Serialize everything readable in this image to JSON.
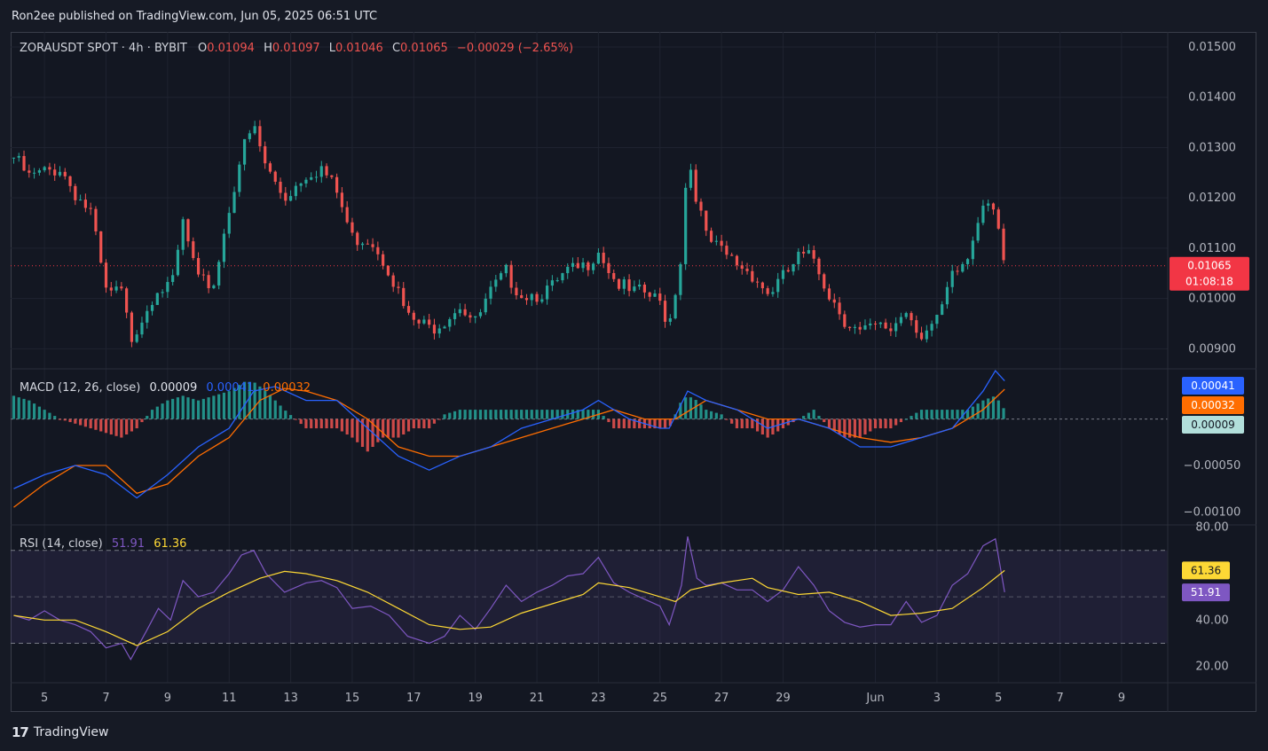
{
  "header": {
    "publisher": "Ron2ee published on TradingView.com, Jun 05, 2025 06:51 UTC"
  },
  "footer": {
    "brand": "TradingView"
  },
  "colors": {
    "up": "#26a69a",
    "down": "#ef5350",
    "macd": "#2962ff",
    "signal": "#ff6d00",
    "rsi": "#7e57c2",
    "rsi_ma": "#fdd835",
    "price_badge": "#f23645"
  },
  "chart_data": [
    {
      "type": "candlestick",
      "symbol_label": "ZORAUSDT SPOT · 4h · BYBIT",
      "ohlc_labels": {
        "o_key": "O",
        "o": "0.01094",
        "h_key": "H",
        "h": "0.01097",
        "l_key": "L",
        "l": "0.01046",
        "c_key": "C",
        "c": "0.01065",
        "change": "−0.00029 (−2.65%)"
      },
      "y_ticks": [
        "0.01500",
        "0.01400",
        "0.01300",
        "0.01200",
        "0.01100",
        "0.01000",
        "0.00900"
      ],
      "ylim": [
        0.0086,
        0.0153
      ],
      "last_price": "0.01065",
      "countdown": "01:08:18",
      "x_ticks": [
        "5",
        "7",
        "9",
        "11",
        "13",
        "15",
        "17",
        "19",
        "21",
        "23",
        "25",
        "27",
        "29",
        "Jun",
        "3",
        "5",
        "7",
        "9"
      ],
      "x_tick_values": [
        5,
        7,
        9,
        11,
        13,
        15,
        17,
        19,
        21,
        23,
        25,
        27,
        29,
        32,
        34,
        36,
        38,
        40
      ],
      "x_domain": [
        3.9,
        41.5
      ],
      "approx_close_path": [
        [
          4.0,
          0.0128
        ],
        [
          4.5,
          0.0124
        ],
        [
          5.0,
          0.0125
        ],
        [
          5.5,
          0.0126
        ],
        [
          6.0,
          0.0121
        ],
        [
          6.5,
          0.0117
        ],
        [
          7.0,
          0.0101
        ],
        [
          7.5,
          0.0101
        ],
        [
          7.8,
          0.0092
        ],
        [
          8.3,
          0.0098
        ],
        [
          8.7,
          0.0103
        ],
        [
          9.1,
          0.0101
        ],
        [
          9.5,
          0.0115
        ],
        [
          10.0,
          0.0103
        ],
        [
          10.5,
          0.0103
        ],
        [
          11.0,
          0.0118
        ],
        [
          11.4,
          0.0129
        ],
        [
          11.8,
          0.0134
        ],
        [
          12.2,
          0.0126
        ],
        [
          12.8,
          0.012
        ],
        [
          13.5,
          0.0125
        ],
        [
          14.0,
          0.0126
        ],
        [
          14.5,
          0.0121
        ],
        [
          15.0,
          0.0112
        ],
        [
          15.6,
          0.0112
        ],
        [
          16.2,
          0.0106
        ],
        [
          16.8,
          0.0096
        ],
        [
          17.5,
          0.0094
        ],
        [
          18.0,
          0.0096
        ],
        [
          18.5,
          0.0099
        ],
        [
          19.0,
          0.0095
        ],
        [
          19.5,
          0.0101
        ],
        [
          20.0,
          0.0105
        ],
        [
          20.5,
          0.0101
        ],
        [
          21.0,
          0.0101
        ],
        [
          21.5,
          0.0102
        ],
        [
          22.0,
          0.0105
        ],
        [
          22.5,
          0.0106
        ],
        [
          23.0,
          0.011
        ],
        [
          23.5,
          0.0104
        ],
        [
          24.0,
          0.0101
        ],
        [
          24.5,
          0.0101
        ],
        [
          25.0,
          0.0099
        ],
        [
          25.3,
          0.0095
        ],
        [
          25.7,
          0.0109
        ],
        [
          25.9,
          0.0129
        ],
        [
          26.2,
          0.012
        ],
        [
          26.5,
          0.0112
        ],
        [
          27.0,
          0.0109
        ],
        [
          27.5,
          0.0107
        ],
        [
          28.0,
          0.0105
        ],
        [
          28.5,
          0.0101
        ],
        [
          29.0,
          0.0104
        ],
        [
          29.5,
          0.0108
        ],
        [
          30.0,
          0.0108
        ],
        [
          30.5,
          0.0101
        ],
        [
          31.0,
          0.0096
        ],
        [
          31.5,
          0.0093
        ],
        [
          32.0,
          0.0094
        ],
        [
          32.5,
          0.0094
        ],
        [
          33.0,
          0.0098
        ],
        [
          33.5,
          0.0093
        ],
        [
          34.0,
          0.0095
        ],
        [
          34.5,
          0.0104
        ],
        [
          35.0,
          0.0108
        ],
        [
          35.5,
          0.012
        ],
        [
          35.9,
          0.0119
        ],
        [
          36.2,
          0.0106
        ]
      ]
    },
    {
      "type": "macd",
      "label": "MACD (12, 26, close)",
      "values": {
        "hist": "0.00009",
        "macd": "0.00041",
        "signal": "0.00032"
      },
      "y_ticks": [
        "−0.00050",
        "−0.00100"
      ],
      "ylim": [
        -0.00114,
        0.00054
      ],
      "macd_line": [
        [
          4.0,
          -0.00075
        ],
        [
          5.0,
          -0.0006
        ],
        [
          6.0,
          -0.0005
        ],
        [
          7.0,
          -0.0006
        ],
        [
          8.0,
          -0.00085
        ],
        [
          9.0,
          -0.0006
        ],
        [
          10.0,
          -0.0003
        ],
        [
          11.0,
          -0.0001
        ],
        [
          11.8,
          0.0003
        ],
        [
          12.5,
          0.00035
        ],
        [
          13.5,
          0.0002
        ],
        [
          14.5,
          0.0002
        ],
        [
          15.5,
          -0.0001
        ],
        [
          16.5,
          -0.0004
        ],
        [
          17.5,
          -0.00055
        ],
        [
          18.5,
          -0.0004
        ],
        [
          19.5,
          -0.0003
        ],
        [
          20.5,
          -0.0001
        ],
        [
          21.5,
          0.0
        ],
        [
          22.5,
          0.0001
        ],
        [
          23.0,
          0.0002
        ],
        [
          24.0,
          0.0
        ],
        [
          25.0,
          -0.0001
        ],
        [
          25.3,
          -0.0001
        ],
        [
          25.9,
          0.0003
        ],
        [
          26.5,
          0.0002
        ],
        [
          27.5,
          0.0001
        ],
        [
          28.5,
          -0.0001
        ],
        [
          29.5,
          0.0
        ],
        [
          30.5,
          -0.0001
        ],
        [
          31.5,
          -0.0003
        ],
        [
          32.5,
          -0.0003
        ],
        [
          33.5,
          -0.0002
        ],
        [
          34.5,
          -0.0001
        ],
        [
          35.5,
          0.0003
        ],
        [
          35.9,
          0.00052
        ],
        [
          36.2,
          0.00041
        ]
      ],
      "signal_line": [
        [
          4.0,
          -0.00095
        ],
        [
          5.0,
          -0.0007
        ],
        [
          6.0,
          -0.0005
        ],
        [
          7.0,
          -0.0005
        ],
        [
          8.0,
          -0.0008
        ],
        [
          9.0,
          -0.0007
        ],
        [
          10.0,
          -0.0004
        ],
        [
          11.0,
          -0.0002
        ],
        [
          12.0,
          0.0002
        ],
        [
          12.8,
          0.00033
        ],
        [
          13.5,
          0.0003
        ],
        [
          14.5,
          0.0002
        ],
        [
          15.5,
          0.0
        ],
        [
          16.5,
          -0.0003
        ],
        [
          17.5,
          -0.0004
        ],
        [
          18.5,
          -0.0004
        ],
        [
          19.5,
          -0.0003
        ],
        [
          20.5,
          -0.0002
        ],
        [
          21.5,
          -0.0001
        ],
        [
          22.5,
          0.0
        ],
        [
          23.5,
          0.0001
        ],
        [
          24.5,
          0.0
        ],
        [
          25.5,
          0.0
        ],
        [
          26.5,
          0.0002
        ],
        [
          27.5,
          0.0001
        ],
        [
          28.5,
          0.0
        ],
        [
          29.5,
          0.0
        ],
        [
          30.5,
          -0.0001
        ],
        [
          31.5,
          -0.0002
        ],
        [
          32.5,
          -0.00025
        ],
        [
          33.5,
          -0.0002
        ],
        [
          34.5,
          -0.0001
        ],
        [
          35.5,
          0.0001
        ],
        [
          36.2,
          0.00032
        ]
      ],
      "histogram": [
        [
          4.0,
          0.00025
        ],
        [
          4.5,
          0.0002
        ],
        [
          5.0,
          0.0001
        ],
        [
          5.5,
          0.0
        ],
        [
          6.0,
          -5e-05
        ],
        [
          6.5,
          -0.0001
        ],
        [
          7.0,
          -0.00015
        ],
        [
          7.5,
          -0.0002
        ],
        [
          8.0,
          -0.0001
        ],
        [
          8.5,
          0.0001
        ],
        [
          9.0,
          0.0002
        ],
        [
          9.5,
          0.00025
        ],
        [
          10.0,
          0.0002
        ],
        [
          10.5,
          0.00025
        ],
        [
          11.0,
          0.0003
        ],
        [
          11.5,
          0.0004
        ],
        [
          11.8,
          0.0004
        ],
        [
          12.2,
          0.0003
        ],
        [
          12.8,
          0.0001
        ],
        [
          13.5,
          -0.0001
        ],
        [
          14.0,
          -0.0001
        ],
        [
          14.5,
          -0.0001
        ],
        [
          15.0,
          -0.0002
        ],
        [
          15.5,
          -0.00035
        ],
        [
          16.0,
          -0.0002
        ],
        [
          16.5,
          -0.0002
        ],
        [
          17.0,
          -0.0001
        ],
        [
          17.5,
          -0.0001
        ],
        [
          18.0,
          5e-05
        ],
        [
          18.5,
          0.0001
        ],
        [
          19.0,
          0.0001
        ],
        [
          19.5,
          0.0001
        ],
        [
          20.0,
          0.0001
        ],
        [
          20.5,
          0.0001
        ],
        [
          21.0,
          0.0001
        ],
        [
          21.5,
          0.0001
        ],
        [
          22.0,
          0.0001
        ],
        [
          22.5,
          0.0001
        ],
        [
          23.0,
          0.0001
        ],
        [
          23.5,
          -0.0001
        ],
        [
          24.0,
          -0.0001
        ],
        [
          24.5,
          -0.0001
        ],
        [
          25.0,
          -0.0001
        ],
        [
          25.3,
          -0.0001
        ],
        [
          25.7,
          0.0002
        ],
        [
          25.9,
          0.00025
        ],
        [
          26.2,
          0.0002
        ],
        [
          26.5,
          0.0001
        ],
        [
          27.0,
          5e-05
        ],
        [
          27.5,
          -0.0001
        ],
        [
          28.0,
          -0.0001
        ],
        [
          28.5,
          -0.0002
        ],
        [
          29.0,
          -0.0001
        ],
        [
          29.5,
          0.0
        ],
        [
          30.0,
          0.0001
        ],
        [
          30.5,
          -0.0001
        ],
        [
          31.0,
          -0.0002
        ],
        [
          31.5,
          -0.0002
        ],
        [
          32.0,
          -0.0001
        ],
        [
          32.5,
          -0.0001
        ],
        [
          33.0,
          0.0
        ],
        [
          33.5,
          0.0001
        ],
        [
          34.0,
          0.0001
        ],
        [
          34.5,
          0.0001
        ],
        [
          35.0,
          0.0001
        ],
        [
          35.5,
          0.0002
        ],
        [
          35.9,
          0.00025
        ],
        [
          36.2,
          0.0001
        ]
      ]
    },
    {
      "type": "line",
      "label": "RSI (14, close)",
      "values": {
        "rsi": "51.91",
        "rsi_ma": "61.36"
      },
      "y_ticks": [
        "80.00",
        "40.00",
        "20.00"
      ],
      "y_tick_values": [
        80,
        40,
        20
      ],
      "ylim": [
        13,
        81
      ],
      "band": [
        30,
        70
      ],
      "midline": 50,
      "rsi_line": [
        [
          4.0,
          42
        ],
        [
          4.5,
          40
        ],
        [
          5.0,
          44
        ],
        [
          5.5,
          40
        ],
        [
          6.0,
          38
        ],
        [
          6.5,
          35
        ],
        [
          7.0,
          28
        ],
        [
          7.5,
          30
        ],
        [
          7.8,
          23
        ],
        [
          8.3,
          35
        ],
        [
          8.7,
          45
        ],
        [
          9.1,
          40
        ],
        [
          9.5,
          57
        ],
        [
          10.0,
          50
        ],
        [
          10.5,
          52
        ],
        [
          11.0,
          60
        ],
        [
          11.4,
          68
        ],
        [
          11.8,
          70
        ],
        [
          12.2,
          60
        ],
        [
          12.8,
          52
        ],
        [
          13.5,
          56
        ],
        [
          14.0,
          57
        ],
        [
          14.5,
          54
        ],
        [
          15.0,
          45
        ],
        [
          15.6,
          46
        ],
        [
          16.2,
          42
        ],
        [
          16.8,
          33
        ],
        [
          17.5,
          30
        ],
        [
          18.0,
          33
        ],
        [
          18.5,
          42
        ],
        [
          19.0,
          36
        ],
        [
          19.5,
          45
        ],
        [
          20.0,
          55
        ],
        [
          20.5,
          48
        ],
        [
          21.0,
          52
        ],
        [
          21.5,
          55
        ],
        [
          22.0,
          59
        ],
        [
          22.5,
          60
        ],
        [
          23.0,
          67
        ],
        [
          23.5,
          56
        ],
        [
          24.0,
          52
        ],
        [
          24.5,
          49
        ],
        [
          25.0,
          46
        ],
        [
          25.3,
          38
        ],
        [
          25.7,
          55
        ],
        [
          25.9,
          76
        ],
        [
          26.2,
          58
        ],
        [
          26.5,
          55
        ],
        [
          27.0,
          56
        ],
        [
          27.5,
          53
        ],
        [
          28.0,
          53
        ],
        [
          28.5,
          48
        ],
        [
          29.0,
          53
        ],
        [
          29.5,
          63
        ],
        [
          30.0,
          55
        ],
        [
          30.5,
          44
        ],
        [
          31.0,
          39
        ],
        [
          31.5,
          37
        ],
        [
          32.0,
          38
        ],
        [
          32.5,
          38
        ],
        [
          33.0,
          48
        ],
        [
          33.5,
          39
        ],
        [
          34.0,
          42
        ],
        [
          34.5,
          55
        ],
        [
          35.0,
          60
        ],
        [
          35.5,
          72
        ],
        [
          35.9,
          75
        ],
        [
          36.2,
          52
        ]
      ],
      "rsi_ma_line": [
        [
          4.0,
          42
        ],
        [
          5.0,
          40
        ],
        [
          6.0,
          40
        ],
        [
          7.0,
          35
        ],
        [
          8.0,
          29
        ],
        [
          9.0,
          35
        ],
        [
          10.0,
          45
        ],
        [
          11.0,
          52
        ],
        [
          12.0,
          58
        ],
        [
          12.8,
          61
        ],
        [
          13.5,
          60
        ],
        [
          14.5,
          57
        ],
        [
          15.5,
          52
        ],
        [
          16.5,
          45
        ],
        [
          17.5,
          38
        ],
        [
          18.5,
          36
        ],
        [
          19.5,
          37
        ],
        [
          20.5,
          43
        ],
        [
          21.5,
          47
        ],
        [
          22.5,
          51
        ],
        [
          23.0,
          56
        ],
        [
          24.0,
          54
        ],
        [
          25.0,
          50
        ],
        [
          25.5,
          48
        ],
        [
          26.0,
          53
        ],
        [
          27.0,
          56
        ],
        [
          28.0,
          58
        ],
        [
          28.5,
          54
        ],
        [
          29.5,
          51
        ],
        [
          30.5,
          52
        ],
        [
          31.5,
          48
        ],
        [
          32.5,
          42
        ],
        [
          33.5,
          43
        ],
        [
          34.5,
          45
        ],
        [
          35.5,
          54
        ],
        [
          36.2,
          61.36
        ]
      ]
    }
  ]
}
